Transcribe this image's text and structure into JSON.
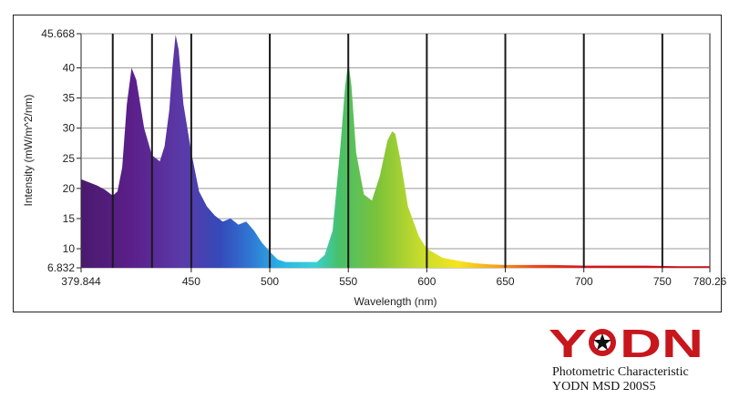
{
  "chart_data": {
    "type": "area",
    "xlabel": "Wavelength (nm)",
    "ylabel": "Intensity (mW/m^2/nm)",
    "xlim": [
      379.844,
      780.26
    ],
    "ylim": [
      6.832,
      45.668
    ],
    "x_ticks": [
      "379.844",
      "450",
      "500",
      "550",
      "600",
      "650",
      "700",
      "750",
      "780.26"
    ],
    "x_tick_values": [
      379.844,
      450,
      500,
      550,
      600,
      650,
      700,
      750,
      780.26
    ],
    "y_ticks": [
      "45.668",
      "40",
      "35",
      "30",
      "25",
      "20",
      "15",
      "10",
      "6.832"
    ],
    "y_tick_values": [
      45.668,
      40,
      35,
      30,
      25,
      20,
      15,
      10,
      6.832
    ],
    "vertical_gridlines": [
      400,
      425,
      450,
      500,
      550,
      600,
      650,
      700,
      750
    ],
    "grid": true,
    "fill": "spectrum gradient (violet to red)",
    "x": [
      380,
      385,
      390,
      395,
      400,
      403,
      406,
      409,
      412,
      415,
      420,
      425,
      430,
      433,
      436,
      438,
      440,
      442,
      445,
      450,
      455,
      460,
      465,
      470,
      475,
      480,
      485,
      490,
      495,
      500,
      505,
      510,
      520,
      530,
      535,
      540,
      545,
      548,
      550,
      552,
      555,
      560,
      565,
      570,
      575,
      578,
      580,
      583,
      588,
      595,
      600,
      610,
      620,
      630,
      640,
      650,
      660,
      680,
      700,
      720,
      740,
      760,
      780
    ],
    "values": [
      21.5,
      21.0,
      20.5,
      19.8,
      18.8,
      19.5,
      23.5,
      34.0,
      40.0,
      38.0,
      30.0,
      25.5,
      24.5,
      27.0,
      33.0,
      40.0,
      45.5,
      43.0,
      34.0,
      26.0,
      19.5,
      17.0,
      15.5,
      14.5,
      15.0,
      14.0,
      14.5,
      13.0,
      11.0,
      9.5,
      8.2,
      7.8,
      7.8,
      7.8,
      9.0,
      13.0,
      27.0,
      37.0,
      41.0,
      37.0,
      26.0,
      19.0,
      18.0,
      22.0,
      28.0,
      29.5,
      29.0,
      25.0,
      17.0,
      12.0,
      10.0,
      8.5,
      8.0,
      7.6,
      7.4,
      7.3,
      7.3,
      7.3,
      7.2,
      7.2,
      7.2,
      7.1,
      7.1
    ]
  },
  "branding": {
    "logo_text": "YODN",
    "brand_color": "#c8161d",
    "caption_line1": "Photometric Characteristic",
    "caption_line2": "YODN MSD 200S5"
  }
}
